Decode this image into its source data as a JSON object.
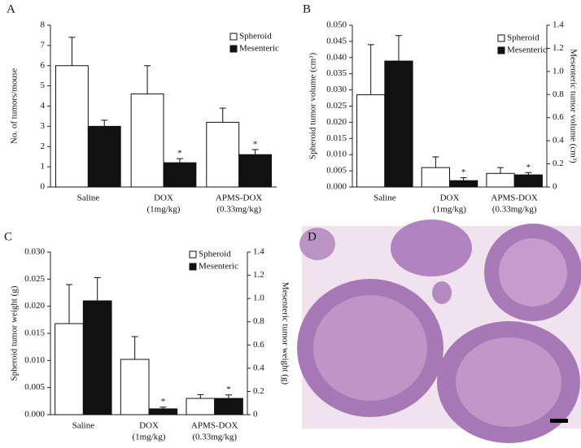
{
  "chart_data": [
    {
      "type": "bar",
      "panel_label": "A",
      "ylabel": "No. of tumors/mouse",
      "categories": [
        [
          "Saline"
        ],
        [
          "DOX",
          "(1mg/kg)"
        ],
        [
          "APMS-DOX",
          "(0.33mg/kg)"
        ]
      ],
      "ylim": [
        0,
        8
      ],
      "yticks": [
        0,
        1,
        2,
        3,
        4,
        5,
        6,
        7,
        8
      ],
      "grid": false,
      "series": [
        {
          "name": "Spheroid",
          "color": "#ffffff",
          "values": [
            6.0,
            4.6,
            3.2
          ],
          "errors": [
            1.4,
            1.4,
            0.7
          ],
          "significance": [
            null,
            null,
            null
          ]
        },
        {
          "name": "Mesenteric",
          "color": "#111111",
          "values": [
            3.0,
            1.2,
            1.6
          ],
          "errors": [
            0.3,
            0.2,
            0.25
          ],
          "significance": [
            null,
            "*",
            "*"
          ]
        }
      ]
    },
    {
      "type": "bar",
      "panel_label": "B",
      "ylabel": "Spheroid tumor volume (cm³)",
      "y2label": "Mesenteric tumor volume (cm³)",
      "categories": [
        [
          "Saline"
        ],
        [
          "DOX",
          "(1mg/kg)"
        ],
        [
          "APMS-DOX",
          "(0.33mg/kg)"
        ]
      ],
      "ylim": [
        0,
        0.05
      ],
      "yticks": [
        {
          "value": 0,
          "label": "0.000"
        },
        {
          "value": 0.005,
          "label": "0.005"
        },
        {
          "value": 0.01,
          "label": "0.010"
        },
        {
          "value": 0.015,
          "label": "0.015"
        },
        {
          "value": 0.02,
          "label": "0.020"
        },
        {
          "value": 0.025,
          "label": "0.025"
        },
        {
          "value": 0.03,
          "label": "0.030"
        },
        {
          "value": 0.035,
          "label": "0.035"
        },
        {
          "value": 0.04,
          "label": "0.040"
        },
        {
          "value": 0.045,
          "label": "0.045"
        },
        {
          "value": 0.05,
          "label": "0.050"
        }
      ],
      "y2lim": [
        0,
        1.4
      ],
      "y2ticks": [
        0,
        0.2,
        0.4,
        0.6,
        0.8,
        {
          "value": 1,
          "label": "1.0"
        },
        1.2,
        1.4
      ],
      "grid": false,
      "series": [
        {
          "name": "Spheroid",
          "color": "#ffffff",
          "values": [
            0.0285,
            0.006,
            0.0042
          ],
          "errors": [
            0.0155,
            0.0033,
            0.0018
          ],
          "significance": [
            null,
            null,
            null
          ]
        },
        {
          "name": "Mesenteric",
          "color": "#111111",
          "axis": "y2",
          "values": [
            1.09,
            0.055,
            0.105
          ],
          "errors": [
            0.22,
            0.025,
            0.02
          ],
          "significance": [
            null,
            "*",
            "*"
          ]
        }
      ]
    },
    {
      "type": "bar",
      "panel_label": "C",
      "ylabel": "Spheroid tumor weight (g)",
      "y2label": "Mesenteric tumor weight (g)",
      "categories": [
        [
          "Saline"
        ],
        [
          "DOX",
          "(1mg/kg)"
        ],
        [
          "APMS-DOX",
          "(0.33mg/kg)"
        ]
      ],
      "ylim": [
        0,
        0.03
      ],
      "yticks": [
        {
          "value": 0,
          "label": "0.000"
        },
        {
          "value": 0.005,
          "label": "0.005"
        },
        {
          "value": 0.01,
          "label": "0.010"
        },
        {
          "value": 0.015,
          "label": "0.015"
        },
        {
          "value": 0.02,
          "label": "0.020"
        },
        {
          "value": 0.025,
          "label": "0.025"
        },
        {
          "value": 0.03,
          "label": "0.030"
        }
      ],
      "y2lim": [
        0,
        1.4
      ],
      "y2ticks": [
        0,
        0.2,
        0.4,
        0.6,
        0.8,
        {
          "value": 1,
          "label": "1.0"
        },
        1.2,
        1.4
      ],
      "grid": false,
      "series": [
        {
          "name": "Spheroid",
          "color": "#ffffff",
          "values": [
            0.0168,
            0.0102,
            0.003
          ],
          "errors": [
            0.0072,
            0.0042,
            0.0007
          ],
          "significance": [
            null,
            null,
            null
          ]
        },
        {
          "name": "Mesenteric",
          "color": "#111111",
          "axis": "y2",
          "values": [
            0.98,
            0.05,
            0.14
          ],
          "errors": [
            0.2,
            0.015,
            0.03
          ],
          "significance": [
            null,
            "*",
            "*"
          ]
        }
      ]
    }
  ],
  "image_panel": {
    "label": "D"
  }
}
